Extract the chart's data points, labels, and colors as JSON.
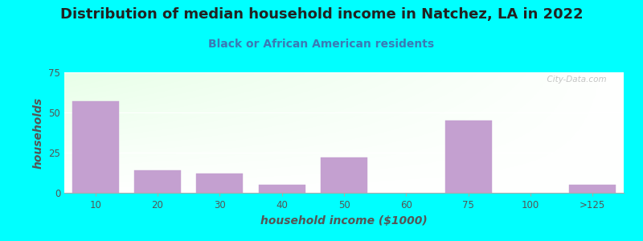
{
  "title": "Distribution of median household income in Natchez, LA in 2022",
  "subtitle": "Black or African American residents",
  "xlabel": "household income ($1000)",
  "ylabel": "households",
  "background_outer": "#00FFFF",
  "bar_color": "#C4A0D0",
  "bar_edge_color": "#C4A0D0",
  "categories": [
    "10",
    "20",
    "30",
    "40",
    "50",
    "60",
    "75",
    "100",
    ">125"
  ],
  "values": [
    57,
    14,
    12,
    5,
    22,
    0,
    45,
    0,
    5
  ],
  "ylim": [
    0,
    75
  ],
  "yticks": [
    0,
    25,
    50,
    75
  ],
  "title_fontsize": 13,
  "subtitle_fontsize": 10,
  "axis_label_fontsize": 10,
  "watermark_text": "  City-Data.com",
  "title_color": "#222222",
  "subtitle_color": "#3a7ab5",
  "ylabel_color": "#555555",
  "xlabel_color": "#555555",
  "tick_color": "#555555"
}
